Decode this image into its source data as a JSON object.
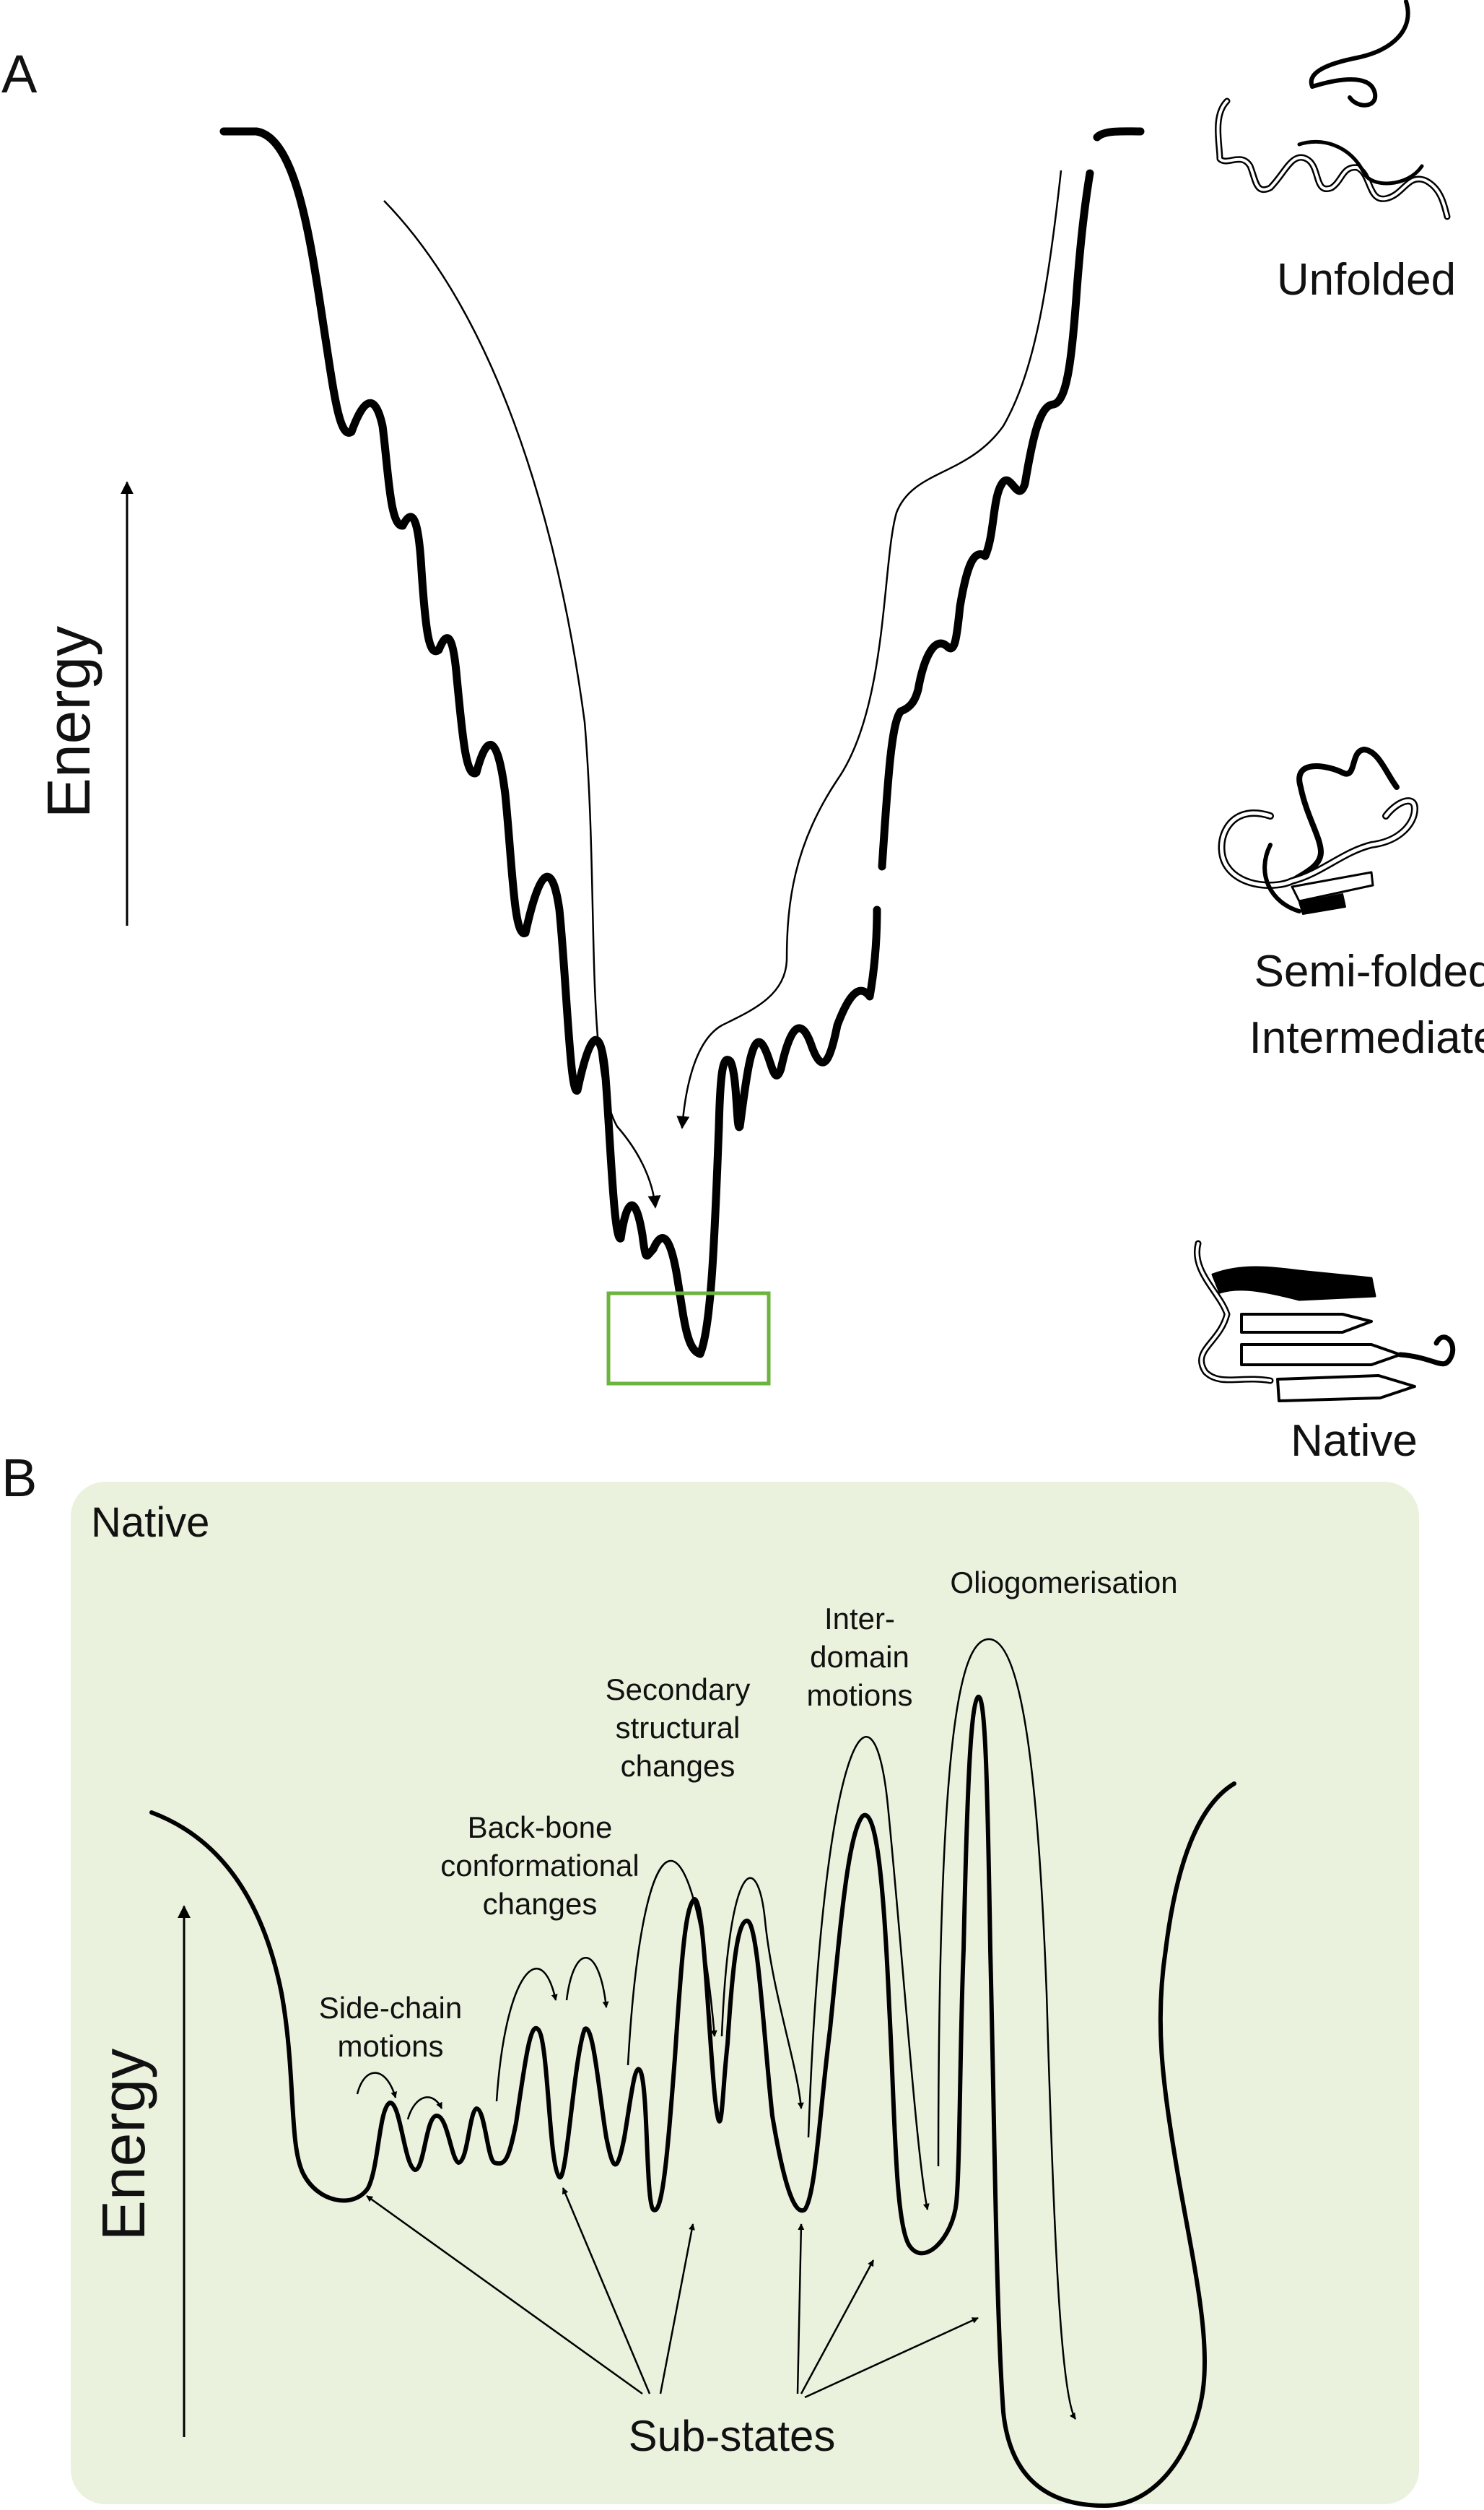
{
  "panel_a": {
    "letter": "A",
    "axis_label": "Energy",
    "states": {
      "unfolded": "Unfolded",
      "intermediate_line1": "Semi-folded",
      "intermediate_line2": "Intermediate",
      "native": "Native"
    },
    "colors": {
      "highlight_box": "#6db33f",
      "landscape": "#000000"
    }
  },
  "panel_b": {
    "letter": "B",
    "title": "Native",
    "axis_label": "Energy",
    "annotations": {
      "side_chain_1": "Side-chain",
      "side_chain_2": "motions",
      "backbone_1": "Back-bone",
      "backbone_2": "conformational",
      "backbone_3": "changes",
      "secondary_1": "Secondary",
      "secondary_2": "structural",
      "secondary_3": "changes",
      "interdomain_1": "Inter-",
      "interdomain_2": "domain",
      "interdomain_3": "motions",
      "oligomer": "Oliogomerisation"
    },
    "substates_label": "Sub-states",
    "colors": {
      "background": "#eaf2dd",
      "landscape": "#000000"
    }
  }
}
